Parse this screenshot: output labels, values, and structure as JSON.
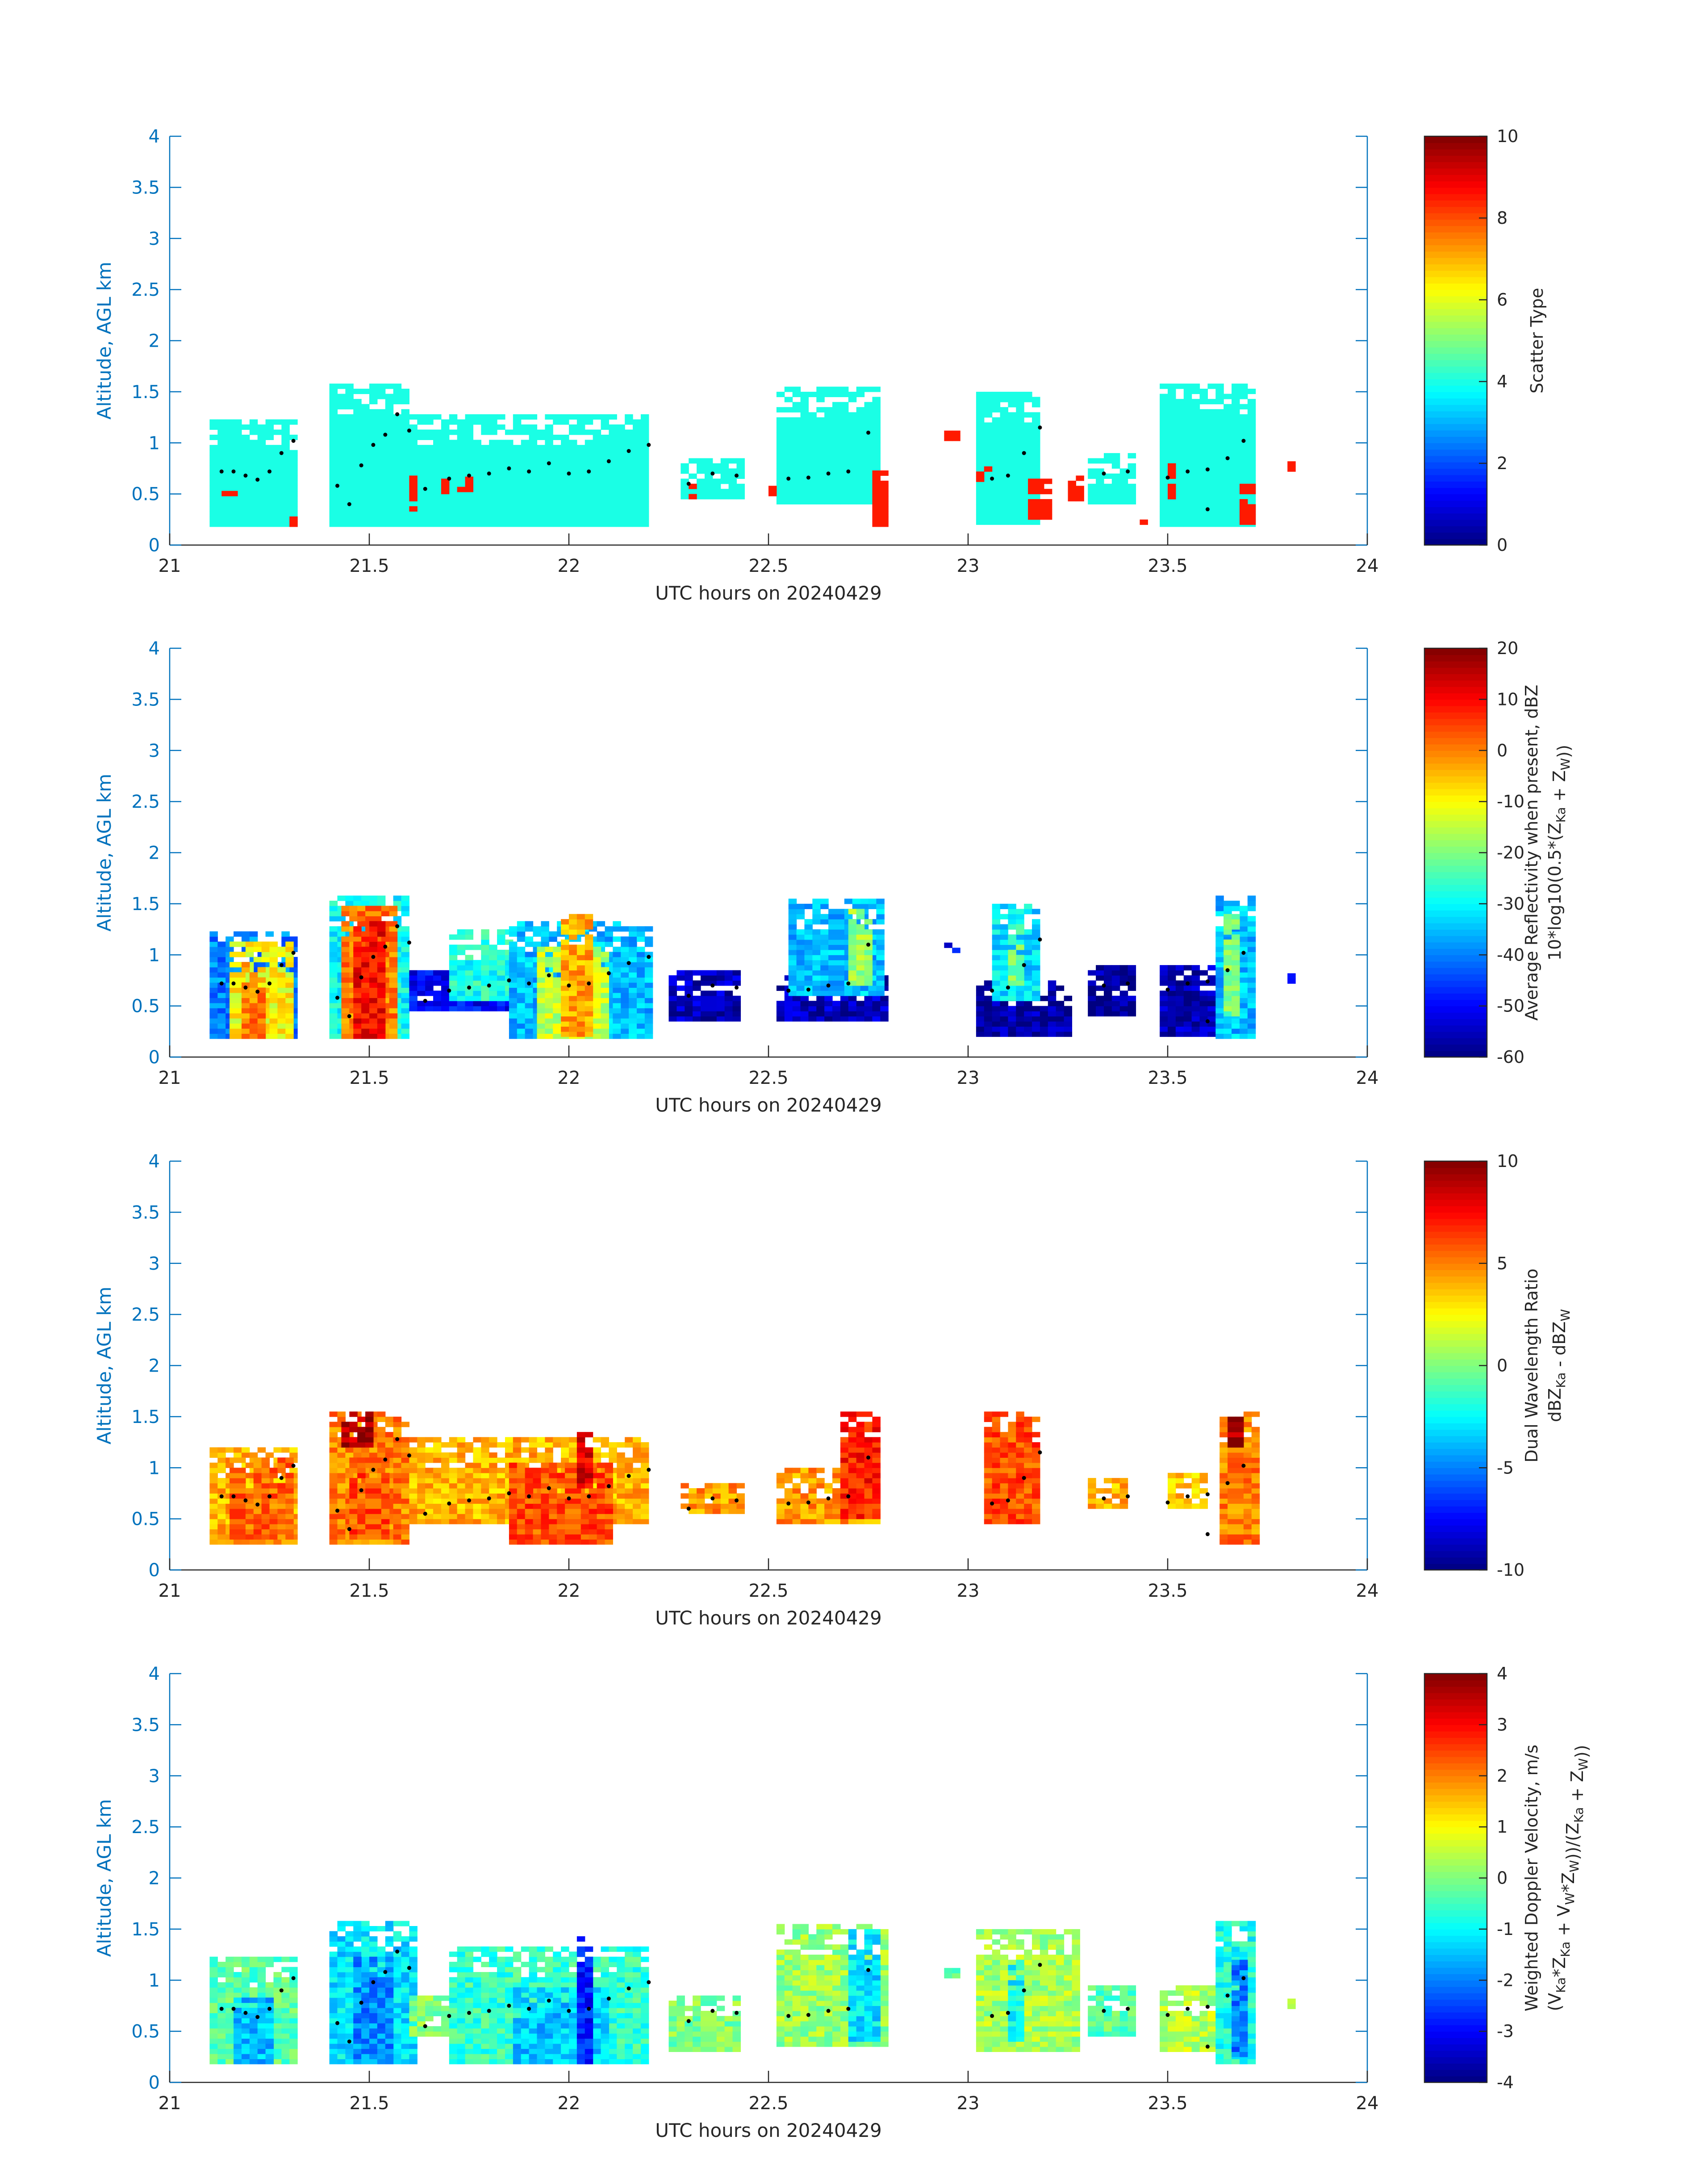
{
  "figure": {
    "date": "20240429",
    "xlabel": "UTC hours on 20240429",
    "ylabel": "Altitude, AGL km"
  },
  "colors": {
    "axis_y": "#0072BD",
    "axis_x": "#262626",
    "jet": [
      "#00008F",
      "#0000FF",
      "#00FFFF",
      "#FFFF00",
      "#FF0000",
      "#800000"
    ]
  },
  "chart_data": [
    {
      "type": "heatmap",
      "name": "Scatter Type",
      "xlabel": "UTC hours on 20240429",
      "ylabel": "Altitude, AGL km",
      "xlim": [
        21,
        24
      ],
      "ylim": [
        0,
        4
      ],
      "xticks": [
        "21",
        "21.5",
        "22",
        "22.5",
        "23",
        "23.5",
        "24"
      ],
      "yticks": [
        "0",
        "0.5",
        "1",
        "1.5",
        "2",
        "2.5",
        "3",
        "3.5",
        "4"
      ],
      "colorbar": {
        "label": "Scatter Type",
        "min": 0,
        "max": 10,
        "ticks": [
          "0",
          "2",
          "4",
          "6",
          "8",
          "10"
        ]
      },
      "blocks": [
        {
          "x0": 21.1,
          "x1": 21.32,
          "y0": 0.18,
          "y1": 1.2,
          "v": 4.0
        },
        {
          "x0": 21.4,
          "x1": 21.6,
          "y0": 0.18,
          "y1": 1.55,
          "v": 4.0
        },
        {
          "x0": 21.6,
          "x1": 22.2,
          "y0": 0.18,
          "y1": 1.25,
          "v": 4.0
        },
        {
          "x0": 22.28,
          "x1": 22.43,
          "y0": 0.45,
          "y1": 0.85,
          "v": 4.0
        },
        {
          "x0": 22.52,
          "x1": 22.78,
          "y0": 0.4,
          "y1": 1.55,
          "v": 4.0
        },
        {
          "x0": 23.02,
          "x1": 23.18,
          "y0": 0.2,
          "y1": 1.5,
          "v": 4.0
        },
        {
          "x0": 23.3,
          "x1": 23.42,
          "y0": 0.4,
          "y1": 0.9,
          "v": 4.0
        },
        {
          "x0": 23.48,
          "x1": 23.72,
          "y0": 0.18,
          "y1": 1.55,
          "v": 4.0
        },
        {
          "x0": 21.13,
          "x1": 21.16,
          "y0": 0.48,
          "y1": 0.55,
          "v": 8.5
        },
        {
          "x0": 21.3,
          "x1": 21.32,
          "y0": 0.18,
          "y1": 0.28,
          "v": 8.5
        },
        {
          "x0": 21.6,
          "x1": 21.62,
          "y0": 0.33,
          "y1": 0.65,
          "v": 8.5
        },
        {
          "x0": 21.68,
          "x1": 21.7,
          "y0": 0.5,
          "y1": 0.65,
          "v": 8.5
        },
        {
          "x0": 21.72,
          "x1": 21.75,
          "y0": 0.52,
          "y1": 0.65,
          "v": 8.5
        },
        {
          "x0": 22.3,
          "x1": 22.32,
          "y0": 0.45,
          "y1": 0.6,
          "v": 8.5
        },
        {
          "x0": 22.5,
          "x1": 22.52,
          "y0": 0.48,
          "y1": 0.55,
          "v": 8.5
        },
        {
          "x0": 22.76,
          "x1": 22.79,
          "y0": 0.18,
          "y1": 0.72,
          "v": 8.5
        },
        {
          "x0": 22.94,
          "x1": 22.98,
          "y0": 1.02,
          "y1": 1.12,
          "v": 8.5
        },
        {
          "x0": 23.02,
          "x1": 23.05,
          "y0": 0.62,
          "y1": 0.75,
          "v": 8.5
        },
        {
          "x0": 23.15,
          "x1": 23.2,
          "y0": 0.25,
          "y1": 0.65,
          "v": 8.5
        },
        {
          "x0": 23.25,
          "x1": 23.28,
          "y0": 0.38,
          "y1": 0.65,
          "v": 8.5
        },
        {
          "x0": 23.43,
          "x1": 23.45,
          "y0": 0.2,
          "y1": 0.25,
          "v": 8.5
        },
        {
          "x0": 23.5,
          "x1": 23.52,
          "y0": 0.45,
          "y1": 0.8,
          "v": 8.5
        },
        {
          "x0": 23.68,
          "x1": 23.72,
          "y0": 0.2,
          "y1": 0.6,
          "v": 8.5
        },
        {
          "x0": 23.8,
          "x1": 23.82,
          "y0": 0.72,
          "y1": 0.82,
          "v": 8.5
        }
      ]
    },
    {
      "type": "heatmap",
      "name": "Average Reflectivity",
      "xlabel": "UTC hours on 20240429",
      "ylabel": "Altitude, AGL km",
      "xlim": [
        21,
        24
      ],
      "ylim": [
        0,
        4
      ],
      "xticks": [
        "21",
        "21.5",
        "22",
        "22.5",
        "23",
        "23.5",
        "24"
      ],
      "yticks": [
        "0",
        "0.5",
        "1",
        "1.5",
        "2",
        "2.5",
        "3",
        "3.5",
        "4"
      ],
      "colorbar": {
        "label_line1": "Average Reflectivity when present, dBZ",
        "label_line2": "10*log10(0.5*(Z",
        "label_sub1": "Ka",
        "label_mid": " + Z",
        "label_sub2": "W",
        "label_end": "))",
        "min": -60,
        "max": 20,
        "ticks": [
          "-60",
          "-50",
          "-40",
          "-30",
          "-20",
          "-10",
          "0",
          "10",
          "20"
        ]
      },
      "blocks": [
        {
          "x0": 21.1,
          "x1": 21.32,
          "y0": 0.18,
          "y1": 1.2,
          "v": -40
        },
        {
          "x0": 21.15,
          "x1": 21.3,
          "y0": 0.18,
          "y1": 1.1,
          "v": -10
        },
        {
          "x0": 21.18,
          "x1": 21.24,
          "y0": 0.18,
          "y1": 0.9,
          "v": 0
        },
        {
          "x0": 21.4,
          "x1": 21.6,
          "y0": 0.18,
          "y1": 1.55,
          "v": -30
        },
        {
          "x0": 21.43,
          "x1": 21.57,
          "y0": 0.18,
          "y1": 1.45,
          "v": 0
        },
        {
          "x0": 21.46,
          "x1": 21.54,
          "y0": 0.18,
          "y1": 1.3,
          "v": 10
        },
        {
          "x0": 21.6,
          "x1": 21.85,
          "y0": 0.45,
          "y1": 0.85,
          "v": -50
        },
        {
          "x0": 21.7,
          "x1": 21.85,
          "y0": 0.55,
          "y1": 1.25,
          "v": -28
        },
        {
          "x0": 21.85,
          "x1": 22.2,
          "y0": 0.18,
          "y1": 1.3,
          "v": -35
        },
        {
          "x0": 21.92,
          "x1": 22.1,
          "y0": 0.18,
          "y1": 1.05,
          "v": -15
        },
        {
          "x0": 21.98,
          "x1": 22.05,
          "y0": 0.2,
          "y1": 1.4,
          "v": -3
        },
        {
          "x0": 22.25,
          "x1": 22.43,
          "y0": 0.35,
          "y1": 0.85,
          "v": -55
        },
        {
          "x0": 22.52,
          "x1": 22.8,
          "y0": 0.35,
          "y1": 0.8,
          "v": -55
        },
        {
          "x0": 22.55,
          "x1": 22.78,
          "y0": 0.6,
          "y1": 1.55,
          "v": -35
        },
        {
          "x0": 22.7,
          "x1": 22.76,
          "y0": 0.7,
          "y1": 1.45,
          "v": -18
        },
        {
          "x0": 22.94,
          "x1": 22.98,
          "y0": 1.02,
          "y1": 1.12,
          "v": -50
        },
        {
          "x0": 23.02,
          "x1": 23.25,
          "y0": 0.2,
          "y1": 0.75,
          "v": -57
        },
        {
          "x0": 23.06,
          "x1": 23.18,
          "y0": 0.55,
          "y1": 1.5,
          "v": -32
        },
        {
          "x0": 23.1,
          "x1": 23.14,
          "y0": 0.7,
          "y1": 1.3,
          "v": -20
        },
        {
          "x0": 23.3,
          "x1": 23.42,
          "y0": 0.4,
          "y1": 0.9,
          "v": -58
        },
        {
          "x0": 23.48,
          "x1": 23.62,
          "y0": 0.2,
          "y1": 0.9,
          "v": -56
        },
        {
          "x0": 23.62,
          "x1": 23.72,
          "y0": 0.18,
          "y1": 1.55,
          "v": -35
        },
        {
          "x0": 23.64,
          "x1": 23.68,
          "y0": 0.4,
          "y1": 1.4,
          "v": -20
        },
        {
          "x0": 23.8,
          "x1": 23.82,
          "y0": 0.72,
          "y1": 0.82,
          "v": -50
        }
      ]
    },
    {
      "type": "heatmap",
      "name": "Dual Wavelength Ratio",
      "xlabel": "UTC hours on 20240429",
      "ylabel": "Altitude, AGL km",
      "xlim": [
        21,
        24
      ],
      "ylim": [
        0,
        4
      ],
      "xticks": [
        "21",
        "21.5",
        "22",
        "22.5",
        "23",
        "23.5",
        "24"
      ],
      "yticks": [
        "0",
        "0.5",
        "1",
        "1.5",
        "2",
        "2.5",
        "3",
        "3.5",
        "4"
      ],
      "colorbar": {
        "label_line1": "Dual Wavelength Ratio",
        "label_line2": "dBZ",
        "label_sub1": "Ka",
        "label_mid": " - dBZ",
        "label_sub2": "W",
        "min": -10,
        "max": 10,
        "ticks": [
          "-10",
          "-5",
          "0",
          "5",
          "10"
        ]
      },
      "blocks": [
        {
          "x0": 21.1,
          "x1": 21.32,
          "y0": 0.25,
          "y1": 1.2,
          "v": 4.0
        },
        {
          "x0": 21.15,
          "x1": 21.3,
          "y0": 0.3,
          "y1": 1.1,
          "v": 5.5
        },
        {
          "x0": 21.4,
          "x1": 21.6,
          "y0": 0.25,
          "y1": 1.55,
          "v": 5.0
        },
        {
          "x0": 21.43,
          "x1": 21.5,
          "y0": 1.2,
          "y1": 1.55,
          "v": 9.0
        },
        {
          "x0": 21.45,
          "x1": 21.55,
          "y0": 0.3,
          "y1": 1.1,
          "v": 6.0
        },
        {
          "x0": 21.6,
          "x1": 22.2,
          "y0": 0.45,
          "y1": 1.3,
          "v": 4.0
        },
        {
          "x0": 21.85,
          "x1": 22.1,
          "y0": 0.25,
          "y1": 1.05,
          "v": 6.0
        },
        {
          "x0": 22.02,
          "x1": 22.06,
          "y0": 0.8,
          "y1": 1.4,
          "v": 8.0
        },
        {
          "x0": 22.28,
          "x1": 22.43,
          "y0": 0.55,
          "y1": 0.85,
          "v": 4.5
        },
        {
          "x0": 22.52,
          "x1": 22.78,
          "y0": 0.45,
          "y1": 1.0,
          "v": 4.5
        },
        {
          "x0": 22.68,
          "x1": 22.78,
          "y0": 0.5,
          "y1": 1.55,
          "v": 7.0
        },
        {
          "x0": 23.04,
          "x1": 23.18,
          "y0": 0.45,
          "y1": 1.55,
          "v": 6.0
        },
        {
          "x0": 23.3,
          "x1": 23.4,
          "y0": 0.6,
          "y1": 0.9,
          "v": 4.0
        },
        {
          "x0": 23.5,
          "x1": 23.6,
          "y0": 0.6,
          "y1": 0.95,
          "v": 3.5
        },
        {
          "x0": 23.63,
          "x1": 23.72,
          "y0": 0.25,
          "y1": 1.55,
          "v": 5.0
        },
        {
          "x0": 23.65,
          "x1": 23.68,
          "y0": 1.2,
          "y1": 1.55,
          "v": 9.5
        }
      ]
    },
    {
      "type": "heatmap",
      "name": "Weighted Doppler Velocity",
      "xlabel": "UTC hours on 20240429",
      "ylabel": "Altitude, AGL km",
      "xlim": [
        21,
        24
      ],
      "ylim": [
        0,
        4
      ],
      "xticks": [
        "21",
        "21.5",
        "22",
        "22.5",
        "23",
        "23.5",
        "24"
      ],
      "yticks": [
        "0",
        "0.5",
        "1",
        "1.5",
        "2",
        "2.5",
        "3",
        "3.5",
        "4"
      ],
      "colorbar": {
        "label_line1": "Weighted Doppler Velocity, m/s",
        "label_line2": "(V",
        "label_sub1": "Ka",
        "label_mid": "*Z",
        "label_sub2": "Ka",
        "label_end": " + V",
        "label_sub3": "W",
        "label_end2": "*Z",
        "label_sub4": "W",
        "label_end3": "))/(Z",
        "label_sub5": "Ka",
        "label_end4": " + Z",
        "label_sub6": "W",
        "label_end5": "))",
        "min": -4,
        "max": 4,
        "ticks": [
          "-4",
          "-3",
          "-2",
          "-1",
          "0",
          "1",
          "2",
          "3",
          "4"
        ]
      },
      "blocks": [
        {
          "x0": 21.1,
          "x1": 21.32,
          "y0": 0.18,
          "y1": 1.2,
          "v": -0.3
        },
        {
          "x0": 21.16,
          "x1": 21.26,
          "y0": 0.18,
          "y1": 0.8,
          "v": -1.5
        },
        {
          "x0": 21.4,
          "x1": 21.62,
          "y0": 0.18,
          "y1": 1.55,
          "v": -1.2
        },
        {
          "x0": 21.46,
          "x1": 21.56,
          "y0": 0.18,
          "y1": 1.2,
          "v": -1.9
        },
        {
          "x0": 21.6,
          "x1": 21.85,
          "y0": 0.45,
          "y1": 0.85,
          "v": 0.1
        },
        {
          "x0": 21.7,
          "x1": 22.2,
          "y0": 0.18,
          "y1": 1.3,
          "v": -0.6
        },
        {
          "x0": 21.86,
          "x1": 22.1,
          "y0": 0.18,
          "y1": 0.9,
          "v": -1.4
        },
        {
          "x0": 22.02,
          "x1": 22.06,
          "y0": 0.18,
          "y1": 1.4,
          "v": -2.8
        },
        {
          "x0": 22.25,
          "x1": 22.43,
          "y0": 0.3,
          "y1": 0.85,
          "v": 0.0
        },
        {
          "x0": 22.52,
          "x1": 22.8,
          "y0": 0.35,
          "y1": 1.55,
          "v": 0.2
        },
        {
          "x0": 22.7,
          "x1": 22.77,
          "y0": 0.4,
          "y1": 1.5,
          "v": -1.2
        },
        {
          "x0": 22.94,
          "x1": 22.98,
          "y0": 1.02,
          "y1": 1.12,
          "v": -0.5
        },
        {
          "x0": 23.02,
          "x1": 23.28,
          "y0": 0.3,
          "y1": 1.5,
          "v": 0.3
        },
        {
          "x0": 23.1,
          "x1": 23.14,
          "y0": 0.4,
          "y1": 1.2,
          "v": -1.0
        },
        {
          "x0": 23.3,
          "x1": 23.42,
          "y0": 0.45,
          "y1": 0.95,
          "v": -0.3
        },
        {
          "x0": 23.48,
          "x1": 23.62,
          "y0": 0.3,
          "y1": 0.95,
          "v": 0.4
        },
        {
          "x0": 23.62,
          "x1": 23.72,
          "y0": 0.18,
          "y1": 1.55,
          "v": -0.8
        },
        {
          "x0": 23.66,
          "x1": 23.7,
          "y0": 0.25,
          "y1": 1.2,
          "v": -2.0
        },
        {
          "x0": 23.8,
          "x1": 23.82,
          "y0": 0.72,
          "y1": 0.82,
          "v": 0.0
        }
      ]
    }
  ],
  "cloud_base_dots": [
    [
      21.13,
      0.72
    ],
    [
      21.16,
      0.72
    ],
    [
      21.19,
      0.68
    ],
    [
      21.22,
      0.64
    ],
    [
      21.25,
      0.72
    ],
    [
      21.28,
      0.9
    ],
    [
      21.31,
      1.02
    ],
    [
      21.42,
      0.58
    ],
    [
      21.45,
      0.4
    ],
    [
      21.48,
      0.78
    ],
    [
      21.51,
      0.98
    ],
    [
      21.54,
      1.08
    ],
    [
      21.57,
      1.28
    ],
    [
      21.6,
      1.12
    ],
    [
      21.64,
      0.55
    ],
    [
      21.7,
      0.65
    ],
    [
      21.75,
      0.68
    ],
    [
      21.8,
      0.7
    ],
    [
      21.85,
      0.75
    ],
    [
      21.9,
      0.72
    ],
    [
      21.95,
      0.8
    ],
    [
      22.0,
      0.7
    ],
    [
      22.05,
      0.72
    ],
    [
      22.1,
      0.82
    ],
    [
      22.15,
      0.92
    ],
    [
      22.2,
      0.98
    ],
    [
      22.3,
      0.6
    ],
    [
      22.36,
      0.7
    ],
    [
      22.42,
      0.68
    ],
    [
      22.55,
      0.65
    ],
    [
      22.6,
      0.66
    ],
    [
      22.65,
      0.7
    ],
    [
      22.7,
      0.72
    ],
    [
      22.75,
      1.1
    ],
    [
      23.06,
      0.65
    ],
    [
      23.1,
      0.68
    ],
    [
      23.14,
      0.9
    ],
    [
      23.18,
      1.15
    ],
    [
      23.34,
      0.7
    ],
    [
      23.4,
      0.72
    ],
    [
      23.5,
      0.66
    ],
    [
      23.55,
      0.72
    ],
    [
      23.6,
      0.74
    ],
    [
      23.65,
      0.85
    ],
    [
      23.69,
      1.02
    ],
    [
      23.6,
      0.35
    ]
  ]
}
